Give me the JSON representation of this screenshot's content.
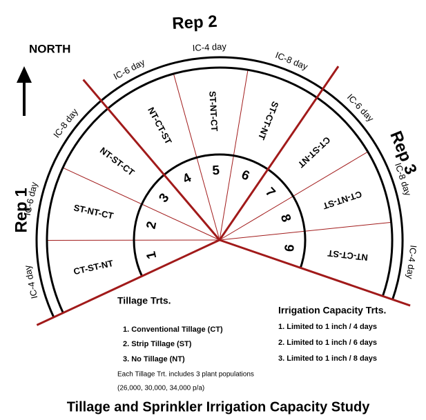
{
  "compass": "NORTH",
  "reps": [
    {
      "label": "Rep 1",
      "sectors": [
        {
          "number": "1",
          "tillage": "CT-ST-NT",
          "irrigation": "IC-4 day"
        },
        {
          "number": "2",
          "tillage": "ST-NT-CT",
          "irrigation": "IC-6 day"
        },
        {
          "number": "3",
          "tillage": "NT-ST-CT",
          "irrigation": "IC-8 day"
        }
      ]
    },
    {
      "label": "Rep 2",
      "sectors": [
        {
          "number": "4",
          "tillage": "NT-CT-ST",
          "irrigation": "IC-6 day"
        },
        {
          "number": "5",
          "tillage": "ST-NT-CT",
          "irrigation": "IC-4 day"
        },
        {
          "number": "6",
          "tillage": "ST-CT-NT",
          "irrigation": "IC-8 day"
        }
      ]
    },
    {
      "label": "Rep 3",
      "sectors": [
        {
          "number": "7",
          "tillage": "CT-ST-NT",
          "irrigation": "IC-6 day"
        },
        {
          "number": "8",
          "tillage": "CT-NT-ST",
          "irrigation": "IC-8 day"
        },
        {
          "number": "9",
          "tillage": "NT-CT-ST",
          "irrigation": "IC-4 day"
        }
      ]
    }
  ],
  "tillage_legend": {
    "title": "Tillage Trts.",
    "items": [
      "1.  Conventional Tillage (CT)",
      "2.  Strip Tillage (ST)",
      "3.  No Tillage (NT)"
    ],
    "note": [
      "Each Tillage Trt. includes 3 plant populations",
      "(26,000, 30,000, 34,000 p/a)"
    ]
  },
  "irrigation_legend": {
    "title": "Irrigation Capacity Trts.",
    "items": [
      "1.  Limited to 1 inch / 4 days",
      "2.  Limited to 1 inch / 6 days",
      "3.  Limited to 1 inch / 8 days"
    ]
  },
  "title": "Tillage and Sprinkler Irrigation Capacity Study"
}
